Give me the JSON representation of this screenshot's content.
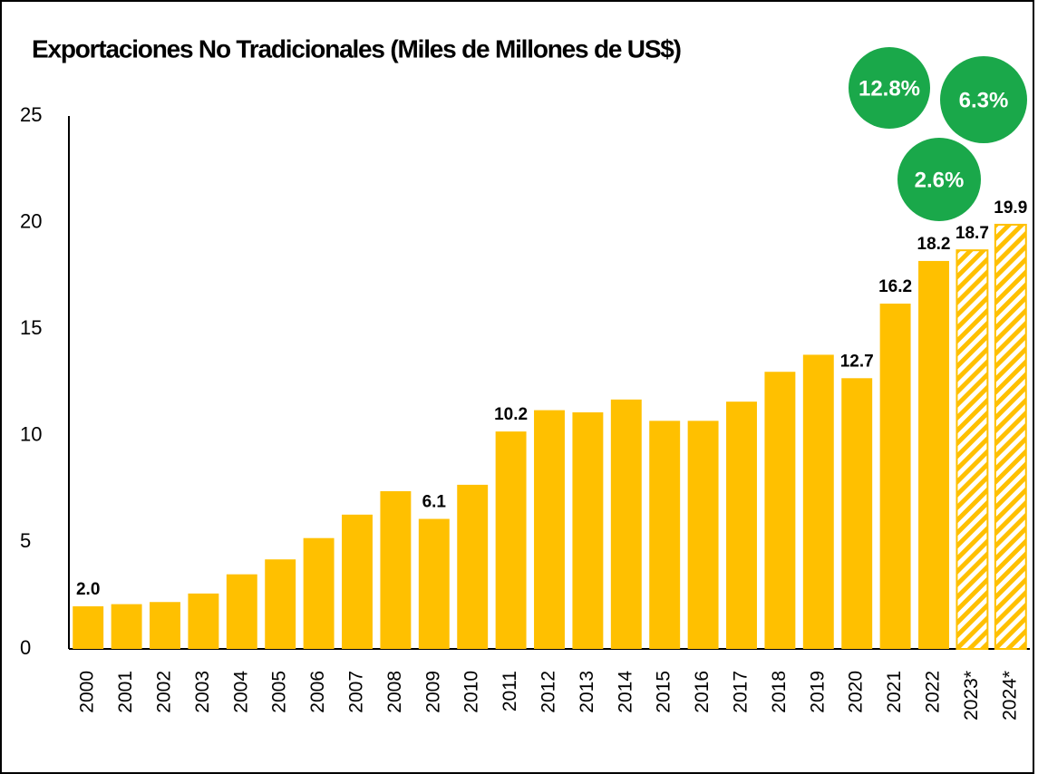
{
  "chart_data": {
    "type": "bar",
    "title": "Exportaciones No Tradicionales (Miles de Millones de US$)",
    "categories": [
      "2000",
      "2001",
      "2002",
      "2003",
      "2004",
      "2005",
      "2006",
      "2007",
      "2008",
      "2009",
      "2010",
      "2011",
      "2012",
      "2013",
      "2014",
      "2015",
      "2016",
      "2017",
      "2018",
      "2019",
      "2020",
      "2021",
      "2022",
      "2023*",
      "2024*"
    ],
    "values": [
      2.0,
      2.1,
      2.2,
      2.6,
      3.5,
      4.2,
      5.2,
      6.3,
      7.4,
      6.1,
      7.7,
      10.2,
      11.2,
      11.1,
      11.7,
      10.7,
      10.7,
      11.6,
      13.0,
      13.8,
      12.7,
      16.2,
      18.2,
      18.7,
      19.9
    ],
    "value_labels": [
      "2.0",
      null,
      null,
      null,
      null,
      null,
      null,
      null,
      null,
      "6.1",
      null,
      "10.2",
      null,
      null,
      null,
      null,
      null,
      null,
      null,
      null,
      "12.7",
      "16.2",
      "18.2",
      "18.7",
      "19.9"
    ],
    "hatched": [
      false,
      false,
      false,
      false,
      false,
      false,
      false,
      false,
      false,
      false,
      false,
      false,
      false,
      false,
      false,
      false,
      false,
      false,
      false,
      false,
      false,
      false,
      false,
      true,
      true
    ],
    "color": "#ffc000",
    "annotations": [
      "12.8%",
      "6.3%",
      "2.6%"
    ],
    "annotation_color": "#1aa84a",
    "ylim": [
      0,
      25
    ],
    "yticks": [
      0,
      5,
      10,
      15,
      20,
      25
    ],
    "grid": false
  }
}
